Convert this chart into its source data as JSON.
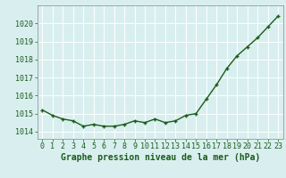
{
  "x": [
    0,
    1,
    2,
    3,
    4,
    5,
    6,
    7,
    8,
    9,
    10,
    11,
    12,
    13,
    14,
    15,
    16,
    17,
    18,
    19,
    20,
    21,
    22,
    23
  ],
  "y": [
    1015.2,
    1014.9,
    1014.7,
    1014.6,
    1014.3,
    1014.4,
    1014.3,
    1014.3,
    1014.4,
    1014.6,
    1014.5,
    1014.7,
    1014.5,
    1014.6,
    1014.9,
    1015.0,
    1015.8,
    1016.6,
    1017.5,
    1018.2,
    1018.7,
    1019.2,
    1019.8,
    1020.4
  ],
  "line_color": "#1a5c1a",
  "marker": "+",
  "marker_size": 3.5,
  "marker_lw": 1.0,
  "bg_plot": "#d9efef",
  "bg_fig": "#d9efef",
  "grid_color": "#ffffff",
  "xlabel": "Graphe pression niveau de la mer (hPa)",
  "xlabel_color": "#1a5c1a",
  "xlabel_fontsize": 7,
  "tick_color": "#1a5c1a",
  "tick_fontsize": 6,
  "ylabel_ticks": [
    1014,
    1015,
    1016,
    1017,
    1018,
    1019,
    1020
  ],
  "ylim": [
    1013.6,
    1021.0
  ],
  "xlim": [
    -0.5,
    23.5
  ],
  "spine_color": "#888888",
  "linewidth": 1.0
}
